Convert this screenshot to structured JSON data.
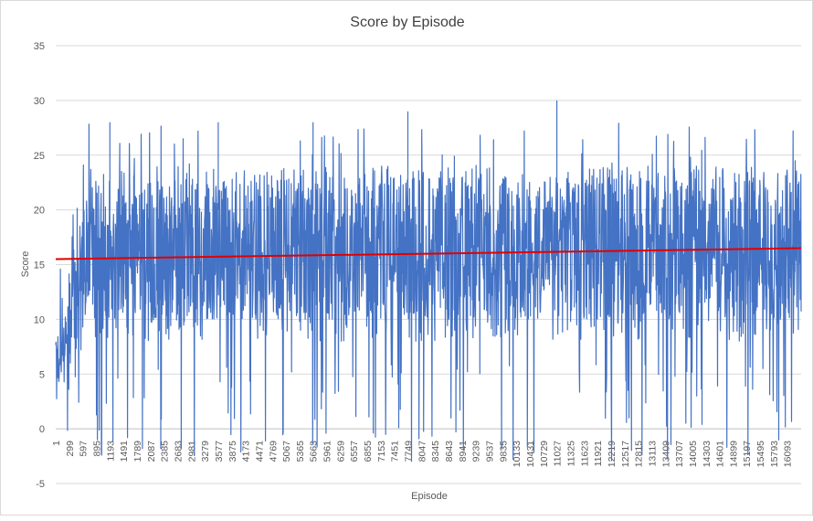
{
  "chart_data": {
    "type": "line",
    "title": "Score by Episode",
    "xlabel": "Episode",
    "ylabel": "Score",
    "ylim": [
      -5,
      35
    ],
    "yticks": [
      -5,
      0,
      5,
      10,
      15,
      20,
      25,
      30,
      35
    ],
    "grid": true,
    "x_tick_labels": [
      "1",
      "299",
      "597",
      "895",
      "1193",
      "1491",
      "1789",
      "2087",
      "2385",
      "2683",
      "2981",
      "3279",
      "3577",
      "3875",
      "4173",
      "4471",
      "4769",
      "5067",
      "5365",
      "5663",
      "5961",
      "6259",
      "6557",
      "6855",
      "7153",
      "7451",
      "7749",
      "8047",
      "8345",
      "8643",
      "8941",
      "9239",
      "9537",
      "9835",
      "10133",
      "10431",
      "10729",
      "11027",
      "11325",
      "11623",
      "11921",
      "12219",
      "12517",
      "12815",
      "13113",
      "13409",
      "13707",
      "14005",
      "14303",
      "14601",
      "14899",
      "15197",
      "15495",
      "15793",
      "16093"
    ],
    "x_range": [
      1,
      16400
    ],
    "series": [
      {
        "name": "Score",
        "color": "#4472c4",
        "summary": {
          "approx_points": 16400,
          "range_min": -3,
          "range_max": 30,
          "typical_low": 8,
          "typical_high": 24
        }
      },
      {
        "name": "Trend",
        "color": "#e00000",
        "kind": "linear",
        "start": [
          1,
          15.5
        ],
        "end": [
          16400,
          16.5
        ]
      }
    ]
  }
}
